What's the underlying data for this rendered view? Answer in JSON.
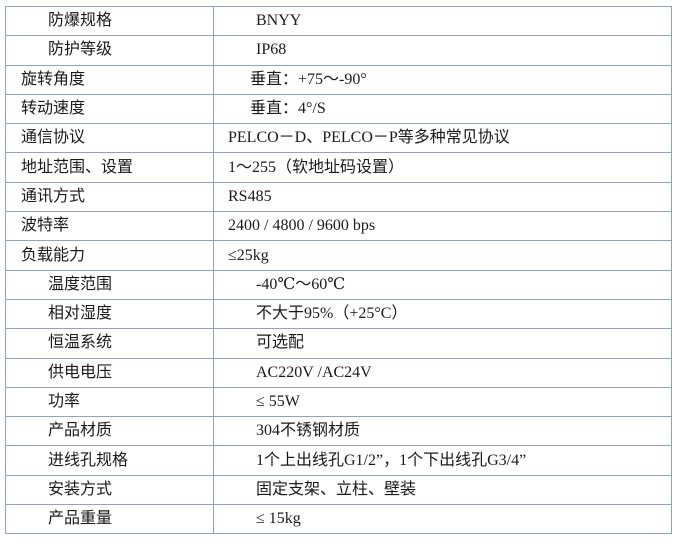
{
  "rows": [
    {
      "label": "防爆规格",
      "value": "BNYY"
    },
    {
      "label": "防护等级",
      "value": "IP68"
    },
    {
      "label": "旋转角度",
      "value": "垂直：+75～-90°"
    },
    {
      "label": "转动速度",
      "value": "垂直：4°/S"
    },
    {
      "label": "通信协议",
      "value": "PELCO－D、PELCO－P等多种常见协议"
    },
    {
      "label": "地址范围、设置",
      "value": "1～255（软地址码设置）"
    },
    {
      "label": "通讯方式",
      "value": "RS485"
    },
    {
      "label": "波特率",
      "value": "2400 / 4800 / 9600 bps"
    },
    {
      "label": "负载能力",
      "value": "≤25kg"
    },
    {
      "label": "温度范围",
      "value": "-40℃～60℃"
    },
    {
      "label": "相对湿度",
      "value": "不大于95%（+25°C）"
    },
    {
      "label": "恒温系统",
      "value": "可选配"
    },
    {
      "label": "供电电压",
      "value": "AC220V /AC24V"
    },
    {
      "label": "功率",
      "value": "≤ 55W"
    },
    {
      "label": "产品材质",
      "value": "304不锈钢材质"
    },
    {
      "label": "进线孔规格",
      "value": "1个上出线孔G1/2”，1个下出线孔G3/4”"
    },
    {
      "label": "安装方式",
      "value": "固定支架、立柱、壁装"
    },
    {
      "label": "产品重量",
      "value": "≤ 15kg"
    }
  ]
}
